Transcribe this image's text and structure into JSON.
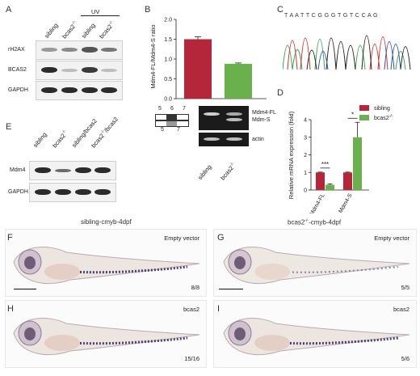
{
  "panels": {
    "A": "A",
    "B": "B",
    "C": "C",
    "D": "D",
    "E": "E",
    "F": "F",
    "G": "G",
    "H": "H",
    "I": "I"
  },
  "panelA": {
    "uv_label": "UV",
    "lanes": [
      "sibling",
      "bcas2",
      "sibling",
      "bcas2"
    ],
    "superscript": "-/-",
    "rows": [
      "rH2AX",
      "BCAS2",
      "GAPDH"
    ]
  },
  "panelB": {
    "ylabel": "Mdm4-FL/Mdm4-S ratio",
    "yticks": [
      "0.0",
      "0.5",
      "1.0",
      "1.5",
      "2.0"
    ],
    "categories": [
      "sibling",
      "bcas2"
    ],
    "exon_labels_top": [
      "5",
      "6",
      "7"
    ],
    "exon_labels_bottom": [
      "5",
      "7"
    ],
    "gel_labels": [
      "Mdm4-FL",
      "Mdm-S",
      "actin"
    ]
  },
  "panelC": {
    "sequence": "T A A T T C G G G T G T C C A G"
  },
  "panelD": {
    "ylabel": "Relative mRNA expression (fold)",
    "legend": [
      "sibling",
      "bcas2"
    ],
    "categories": [
      "Mdm4-FL",
      "Mdm4-S"
    ],
    "yticks": [
      "0",
      "1",
      "2",
      "3",
      "4"
    ],
    "sig": [
      "***",
      "*"
    ]
  },
  "panelE": {
    "lanes": [
      "sibling",
      "bcas2",
      "sibling/bcas2",
      "bcas2"
    ],
    "lane4_suffix": "/bcas2",
    "rows": [
      "Mdm4",
      "GAPDH"
    ]
  },
  "photos": {
    "title_left": "sibling-cmyb-4dpf",
    "title_right": "bcas2",
    "title_right_suffix": "-cmyb-4dpf",
    "F": {
      "caption": "Empty vector",
      "count": "8/8"
    },
    "G": {
      "caption": "Empty vector",
      "count": "5/5"
    },
    "H": {
      "caption": "bcas2",
      "count": "15/16"
    },
    "I": {
      "caption": "bcas2",
      "count": "5/6"
    }
  },
  "chart_data": [
    {
      "type": "bar",
      "ylabel": "Mdm4-FL/Mdm4-S ratio",
      "categories": [
        "sibling",
        "bcas2-/-"
      ],
      "values": [
        1.5,
        0.88
      ],
      "errors": [
        0.06,
        0.02
      ],
      "ylim": [
        0,
        2.0
      ],
      "colors": [
        "#b5263a",
        "#6ab04c"
      ]
    },
    {
      "type": "bar",
      "ylabel": "Relative mRNA expression (fold)",
      "categories": [
        "Mdm4-FL",
        "Mdm4-S"
      ],
      "series": [
        {
          "name": "sibling",
          "values": [
            1.0,
            1.0
          ],
          "errors": [
            0.02,
            0.02
          ],
          "color": "#b5263a"
        },
        {
          "name": "bcas2-/-",
          "values": [
            0.3,
            3.0
          ],
          "errors": [
            0.05,
            0.85
          ],
          "color": "#6ab04c"
        }
      ],
      "ylim": [
        0,
        4
      ],
      "significance": [
        "***",
        "*"
      ]
    }
  ]
}
